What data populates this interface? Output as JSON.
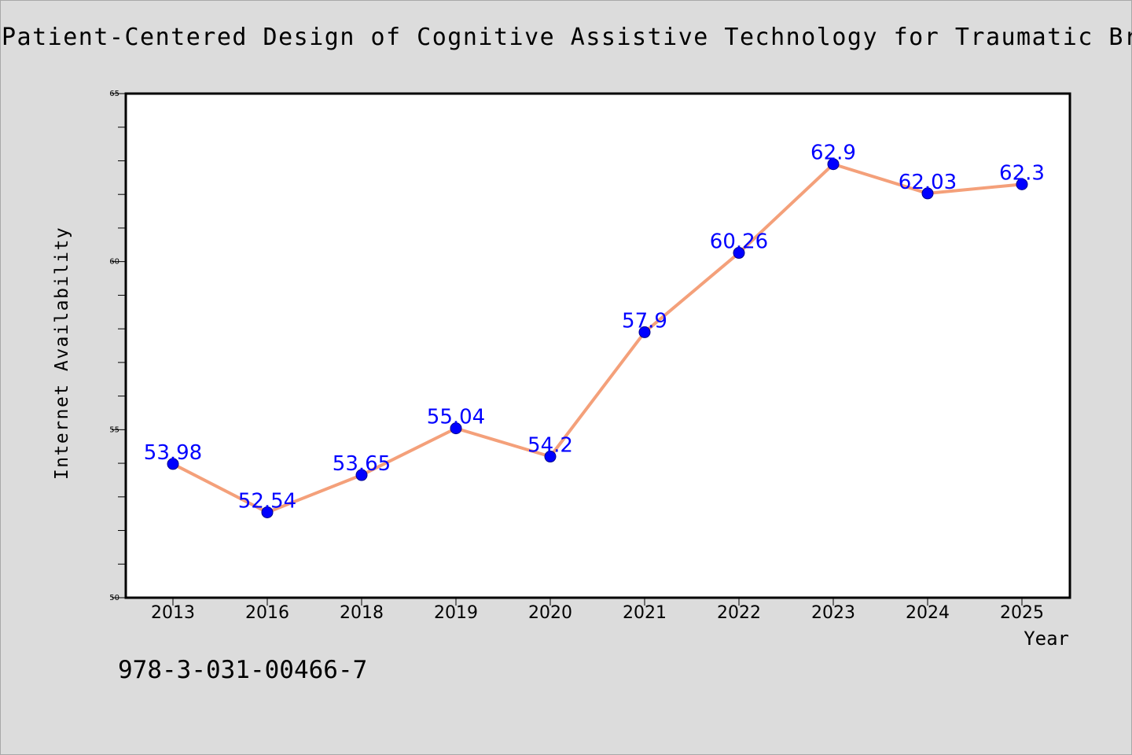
{
  "page": {
    "title": "Patient-Centered Design of Cognitive Assistive Technology for Traumatic Brain In",
    "isbn": "978-3-031-00466-7"
  },
  "chart_data": {
    "type": "line",
    "title": "Patient-Centered Design of Cognitive Assistive Technology for Traumatic Brain In",
    "xlabel": "Year",
    "ylabel": "Internet Availability",
    "categories": [
      "2013",
      "2016",
      "2018",
      "2019",
      "2020",
      "2021",
      "2022",
      "2023",
      "2024",
      "2025"
    ],
    "series": [
      {
        "values": [
          53.98,
          52.54,
          53.65,
          55.04,
          54.2,
          57.9,
          60.26,
          62.9,
          62.03,
          62.3
        ],
        "data_labels": [
          "53.98",
          "52.54",
          "53.65",
          "55.04",
          "54.2",
          "57.9",
          "60.26",
          "62.9",
          "62.03",
          "62.3"
        ]
      }
    ],
    "ylim": [
      50,
      65
    ],
    "yticks": [
      50,
      55,
      60,
      65
    ],
    "ytick_labels": [
      "50",
      "55",
      "60",
      "65"
    ],
    "grid": false,
    "colors": {
      "line": "#f4a07a",
      "marker": "#0000ff",
      "data_label": "#0000ff",
      "plot_background": "#ffffff",
      "figure_background": "#dcdcdc"
    }
  }
}
